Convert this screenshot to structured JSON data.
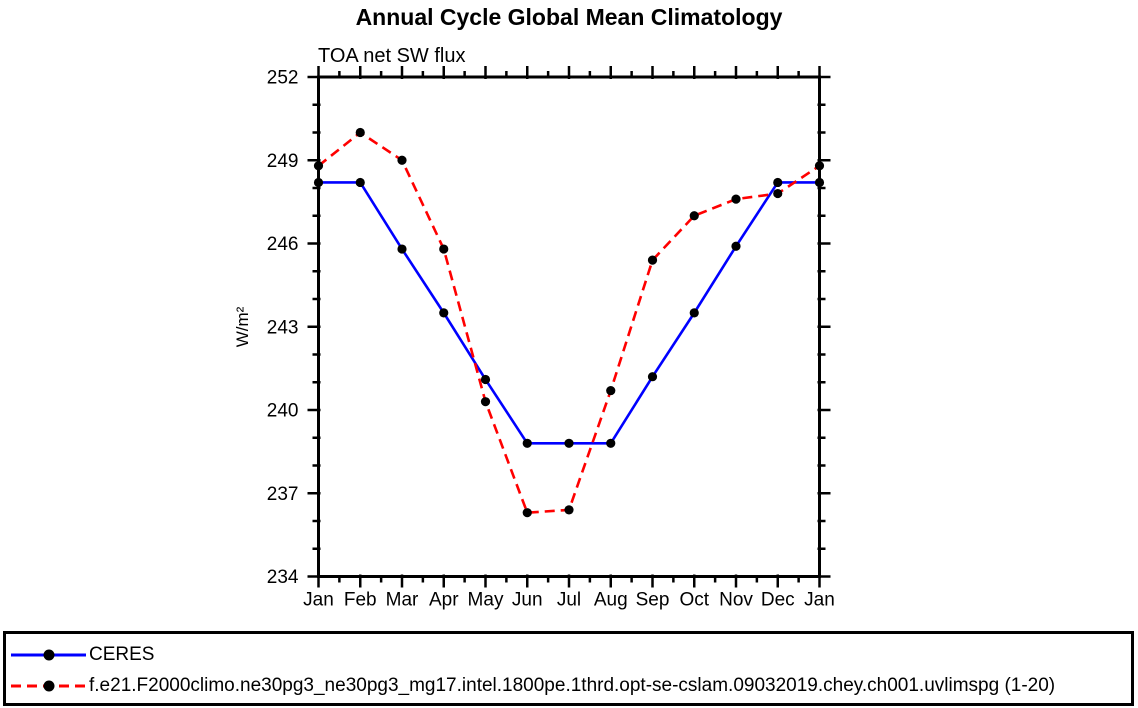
{
  "header": {
    "title": "Annual Cycle Global Mean Climatology",
    "subtitle": "TOA net SW flux"
  },
  "chart_data": {
    "type": "line",
    "title": "Annual Cycle Global Mean Climatology",
    "subtitle": "TOA net SW flux",
    "ylabel": "W/m²",
    "xlabel": "",
    "categories": [
      "Jan",
      "Feb",
      "Mar",
      "Apr",
      "May",
      "Jun",
      "Jul",
      "Aug",
      "Sep",
      "Oct",
      "Nov",
      "Dec",
      "Jan"
    ],
    "ylim": [
      234,
      252
    ],
    "ytick_major": [
      234,
      237,
      240,
      243,
      246,
      249,
      252
    ],
    "ytick_minor_step": 1,
    "xtick_minor": "halfway-between-months",
    "grid": false,
    "legend_position": "bottom-outside-box",
    "frame_color": "#000000",
    "marker": "filled-circle",
    "marker_color": "#000000",
    "series": [
      {
        "name": "CERES",
        "color": "#0000ff",
        "style": "solid",
        "values": [
          248.2,
          248.2,
          245.8,
          243.5,
          241.1,
          238.8,
          238.8,
          238.8,
          241.2,
          243.5,
          245.9,
          248.2,
          248.2
        ]
      },
      {
        "name": "f.e21.F2000climo.ne30pg3_ne30pg3_mg17.intel.1800pe.1thrd.opt-se-cslam.09032019.chey.ch001.uvlimspg (1-20)",
        "color": "#ff0000",
        "style": "dashed",
        "values": [
          248.8,
          250.0,
          249.0,
          245.8,
          240.3,
          236.3,
          236.4,
          240.7,
          245.4,
          247.0,
          247.6,
          247.8,
          248.8
        ]
      }
    ]
  }
}
